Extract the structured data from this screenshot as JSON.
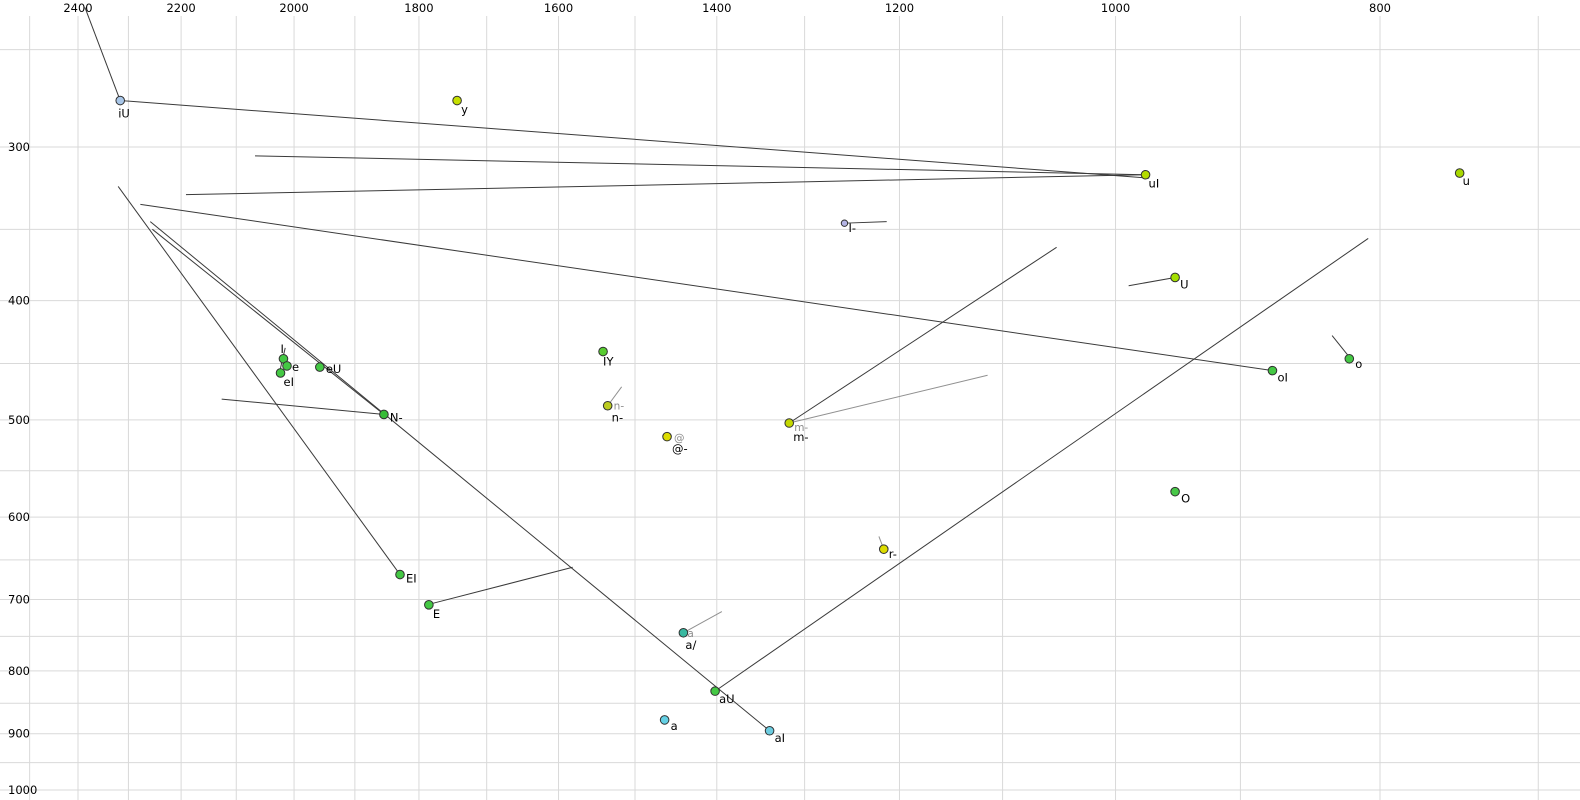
{
  "chart_data": {
    "type": "scatter",
    "title": "",
    "description": "Vowel formant chart (F2 horizontal reversed log scale, F1 vertical log scale) with diphthong trajectory lines",
    "x_axis": {
      "unit": "Hz",
      "scale": "log",
      "reversed": true,
      "label_values": [
        2400,
        2200,
        2000,
        1800,
        1600,
        1400,
        1200,
        1000,
        800
      ],
      "gridline_values": [
        2500,
        2400,
        2300,
        2200,
        2100,
        2000,
        1900,
        1800,
        1700,
        1600,
        1500,
        1400,
        1300,
        1200,
        1100,
        1000,
        900,
        800,
        700
      ]
    },
    "y_axis": {
      "unit": "Hz",
      "scale": "log",
      "label_values": [
        300,
        400,
        500,
        600,
        700,
        800,
        900,
        1000
      ],
      "gridline_values": [
        250,
        300,
        350,
        400,
        450,
        500,
        550,
        600,
        650,
        700,
        750,
        800,
        850,
        900,
        950,
        1000
      ]
    },
    "colors": {
      "background": "#ffffff",
      "grid": "#d9d9d9",
      "line": "#3a3a3a",
      "muted_line": "#909090",
      "label": "#000000",
      "secondary_label": "#8c8c8c",
      "point_stroke": "#303030"
    },
    "points": [
      {
        "label": "iU",
        "f2": 2316,
        "f1": 275,
        "color": "#a8c6e8",
        "label_offset": [
          -2,
          17
        ]
      },
      {
        "label": "y",
        "f2": 1743,
        "f1": 275,
        "color": "#c6e000",
        "label_offset": [
          4,
          13
        ]
      },
      {
        "label": "uI",
        "f2": 975,
        "f1": 316,
        "color": "#b4dc00",
        "label_offset": [
          3,
          13
        ]
      },
      {
        "label": "u",
        "f2": 748,
        "f1": 315,
        "color": "#a8d800",
        "label_offset": [
          3,
          12
        ]
      },
      {
        "label": "I-",
        "f2": 1257,
        "f1": 346,
        "color": "#b4b4e4",
        "r": 3.2,
        "label_offset": [
          4,
          9
        ]
      },
      {
        "label": "U",
        "f2": 951,
        "f1": 383,
        "color": "#a4e000",
        "label_offset": [
          5,
          11
        ]
      },
      {
        "label": "I",
        "f2": 2018,
        "f1": 446,
        "color": "#44c844",
        "label_offset": [
          -3,
          -6
        ]
      },
      {
        "label": "e",
        "f2": 2012,
        "f1": 452,
        "color": "#44c844",
        "label_offset": [
          5,
          5
        ]
      },
      {
        "label": "eI",
        "f2": 2023,
        "f1": 458,
        "color": "#44c844",
        "label_offset": [
          3,
          13
        ]
      },
      {
        "label": "eU",
        "f2": 1957,
        "f1": 453,
        "color": "#44c844",
        "label_offset": [
          6,
          6
        ]
      },
      {
        "label": "IY",
        "f2": 1541,
        "f1": 440,
        "color": "#58cc30",
        "label_offset": [
          0,
          14
        ]
      },
      {
        "label": "n-",
        "f2": 1535,
        "f1": 487,
        "color": "#bccc20",
        "label_offset": [
          4,
          16
        ],
        "secondary": {
          "text": "n-",
          "offset": [
            6,
            4
          ]
        }
      },
      {
        "label": "@-",
        "f2": 1460,
        "f1": 516,
        "color": "#dcdc00",
        "label_offset": [
          5,
          16
        ],
        "secondary": {
          "text": "@",
          "offset": [
            7,
            5
          ]
        }
      },
      {
        "label": "m-",
        "f2": 1317,
        "f1": 503,
        "color": "#c4d800",
        "label_offset": [
          4,
          18
        ],
        "secondary": {
          "text": "m-",
          "offset": [
            5,
            8
          ]
        }
      },
      {
        "label": "N-",
        "f2": 1854,
        "f1": 495,
        "color": "#38bc38",
        "label_offset": [
          6,
          7
        ]
      },
      {
        "label": "oI",
        "f2": 876,
        "f1": 456,
        "color": "#44c844",
        "label_offset": [
          5,
          11
        ]
      },
      {
        "label": "o",
        "f2": 821,
        "f1": 446,
        "color": "#44c844",
        "label_offset": [
          6,
          9
        ]
      },
      {
        "label": "O",
        "f2": 951,
        "f1": 572,
        "color": "#48c848",
        "label_offset": [
          6,
          11
        ]
      },
      {
        "label": "r-",
        "f2": 1216,
        "f1": 637,
        "color": "#dcdc00",
        "label_offset": [
          5,
          9
        ]
      },
      {
        "label": "EI",
        "f2": 1829,
        "f1": 668,
        "color": "#44c844",
        "label_offset": [
          6,
          8
        ]
      },
      {
        "label": "E",
        "f2": 1785,
        "f1": 707,
        "color": "#44c844",
        "label_offset": [
          4,
          13
        ]
      },
      {
        "label": "a/",
        "f2": 1440,
        "f1": 745,
        "color": "#38b8a0",
        "label_offset": [
          2,
          16
        ],
        "secondary": {
          "text": "a",
          "offset": [
            4,
            4
          ]
        }
      },
      {
        "label": "aU",
        "f2": 1402,
        "f1": 831,
        "color": "#44c844",
        "label_offset": [
          4,
          12
        ]
      },
      {
        "label": "a",
        "f2": 1463,
        "f1": 877,
        "color": "#64d0e4",
        "label_offset": [
          6,
          10
        ]
      },
      {
        "label": "aI",
        "f2": 1339,
        "f1": 895,
        "color": "#6ccce0",
        "label_offset": [
          5,
          11
        ]
      }
    ],
    "segments": [
      {
        "f2_start": 2386,
        "f1_start": 231,
        "f2_end": 2316,
        "f1_end": 275
      },
      {
        "f2_start": 2316,
        "f1_start": 275,
        "f2_end": 972,
        "f1_end": 318
      },
      {
        "f2_start": 2067,
        "f1_start": 305,
        "f2_end": 975,
        "f1_end": 316
      },
      {
        "f2_start": 2191,
        "f1_start": 328,
        "f2_end": 975,
        "f1_end": 316
      },
      {
        "f2_start": 1257,
        "f1_start": 346,
        "f2_end": 1213,
        "f1_end": 345
      },
      {
        "f2_start": 989,
        "f1_start": 389,
        "f2_end": 951,
        "f1_end": 383
      },
      {
        "f2_start": 833,
        "f1_start": 427,
        "f2_end": 820,
        "f1_end": 446
      },
      {
        "f2_start": 2025,
        "f1_start": 458,
        "f2_end": 2015,
        "f1_end": 437
      },
      {
        "f2_start": 1535,
        "f1_start": 487,
        "f2_end": 1517,
        "f1_end": 470,
        "muted": true
      },
      {
        "f2_start": 1317,
        "f1_start": 503,
        "f2_end": 1114,
        "f1_end": 460,
        "muted": true
      },
      {
        "f2_start": 1317,
        "f1_start": 503,
        "f2_end": 1051,
        "f1_end": 362
      },
      {
        "f2_start": 2126,
        "f1_start": 481,
        "f2_end": 1854,
        "f1_end": 495
      },
      {
        "f2_start": 2258,
        "f1_start": 345,
        "f2_end": 1339,
        "f1_end": 895
      },
      {
        "f2_start": 2320,
        "f1_start": 323,
        "f2_end": 1829,
        "f1_end": 668
      },
      {
        "f2_start": 2254,
        "f1_start": 350,
        "f2_end": 1854,
        "f1_end": 495
      },
      {
        "f2_start": 2277,
        "f1_start": 334,
        "f2_end": 876,
        "f1_end": 456
      },
      {
        "f2_start": 1402,
        "f1_start": 831,
        "f2_end": 808,
        "f1_end": 356
      },
      {
        "f2_start": 1779,
        "f1_start": 705,
        "f2_end": 1581,
        "f1_end": 659
      },
      {
        "f2_start": 1440,
        "f1_start": 745,
        "f2_end": 1394,
        "f1_end": 716,
        "muted": true
      },
      {
        "f2_start": 1216,
        "f1_start": 637,
        "f2_end": 1221,
        "f1_end": 622,
        "muted": true
      }
    ]
  }
}
